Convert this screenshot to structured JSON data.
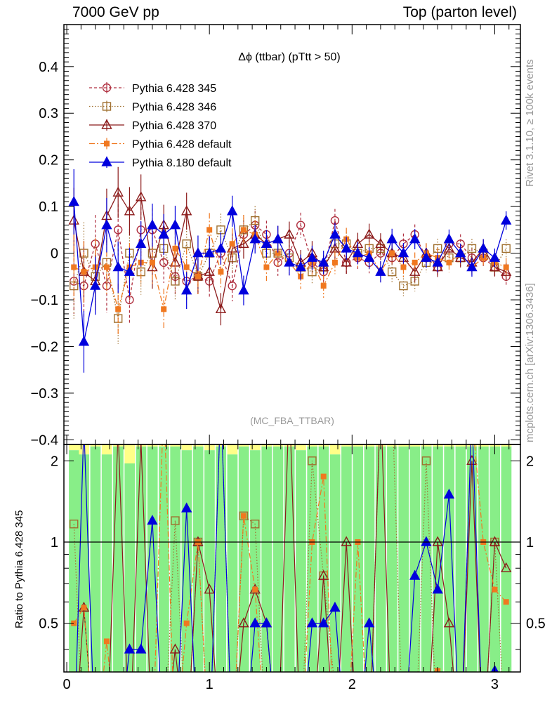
{
  "header": {
    "left": "7000 GeV pp",
    "right": "Top (parton level)"
  },
  "side_text": {
    "rivet": "Rivet 3.1.10, ≥ 100k events",
    "mcplots": "mcplots.cern.ch [arXiv:1306.3436]"
  },
  "chart_data": {
    "type": "scatter",
    "title": "Δϕ (ttbar) (pTtt > 50)",
    "analysis": "(MC_FBA_TTBAR)",
    "xlim": [
      -0.02,
      3.18
    ],
    "ylim": [
      -0.41,
      0.49
    ],
    "ratio_ylabel": "Ratio to Pythia 6.428 345",
    "ratio_ylim": [
      0.33,
      2.3
    ],
    "ratio_reference": 1,
    "x_ticks": [
      "0",
      "1",
      "2",
      "3"
    ],
    "y_ticks": [
      "−0.4",
      "−0.3",
      "−0.2",
      "−0.1",
      "0",
      "0.1",
      "0.2",
      "0.3",
      "0.4"
    ],
    "ratio_ticks": [
      "0.5",
      "1",
      "2"
    ],
    "x": [
      0.05,
      0.12,
      0.2,
      0.28,
      0.36,
      0.44,
      0.52,
      0.6,
      0.68,
      0.76,
      0.84,
      0.92,
      1.0,
      1.08,
      1.16,
      1.24,
      1.32,
      1.4,
      1.48,
      1.56,
      1.64,
      1.72,
      1.8,
      1.88,
      1.96,
      2.04,
      2.12,
      2.2,
      2.28,
      2.36,
      2.44,
      2.52,
      2.6,
      2.68,
      2.76,
      2.84,
      2.92,
      3.0,
      3.08
    ],
    "series": [
      {
        "name": "Pythia 6.428 345",
        "color": "#b03040",
        "marker": "circle-open",
        "line": "dashed",
        "values": [
          -0.06,
          -0.07,
          0.02,
          -0.07,
          0.05,
          -0.1,
          0.05,
          0.05,
          -0.02,
          -0.05,
          -0.06,
          -0.05,
          -0.06,
          0.0,
          -0.07,
          0.04,
          0.06,
          0.04,
          -0.02,
          0.0,
          0.06,
          -0.02,
          -0.04,
          0.07,
          -0.02,
          -0.01,
          -0.02,
          0.0,
          -0.01,
          0.02,
          0.04,
          -0.01,
          -0.03,
          0.02,
          0.02,
          -0.01,
          -0.01,
          -0.03,
          -0.05
        ]
      },
      {
        "name": "Pythia 6.428 346",
        "color": "#a07030",
        "marker": "square-open",
        "line": "dotted",
        "values": [
          -0.07,
          0.0,
          -0.05,
          -0.02,
          -0.14,
          0.0,
          -0.04,
          0.0,
          0.01,
          -0.06,
          0.02,
          -0.05,
          0.0,
          0.05,
          -0.01,
          0.05,
          0.07,
          0.0,
          0.0,
          -0.01,
          -0.03,
          -0.04,
          -0.03,
          0.02,
          0.02,
          0.0,
          0.01,
          0.01,
          -0.04,
          -0.07,
          -0.06,
          -0.02,
          0.01,
          -0.01,
          -0.01,
          0.01,
          0.0,
          -0.03,
          0.01
        ]
      },
      {
        "name": "Pythia 6.428 370",
        "color": "#8b1a1a",
        "marker": "triangle-open",
        "line": "solid",
        "values": [
          0.07,
          -0.04,
          -0.06,
          0.08,
          0.13,
          0.09,
          0.12,
          -0.03,
          0.06,
          -0.02,
          0.09,
          -0.05,
          -0.04,
          -0.12,
          0.01,
          0.02,
          0.04,
          0.02,
          0.03,
          0.04,
          -0.02,
          0.0,
          -0.03,
          0.01,
          -0.02,
          0.02,
          0.04,
          0.02,
          0.0,
          -0.01,
          -0.04,
          0.0,
          -0.03,
          0.01,
          -0.01,
          -0.02,
          0.01,
          -0.03,
          -0.04
        ]
      },
      {
        "name": "Pythia 6.428 default",
        "color": "#f07820",
        "marker": "square-filled",
        "line": "dashdot",
        "values": [
          -0.03,
          -0.04,
          -0.03,
          -0.03,
          -0.12,
          -0.03,
          -0.02,
          -0.02,
          -0.12,
          0.01,
          -0.03,
          -0.05,
          0.05,
          -0.04,
          0.02,
          0.05,
          0.04,
          -0.03,
          0.0,
          -0.02,
          -0.05,
          -0.02,
          -0.07,
          -0.02,
          0.03,
          -0.01,
          0.0,
          -0.04,
          0.0,
          -0.03,
          -0.02,
          0.0,
          -0.01,
          -0.02,
          0.0,
          -0.03,
          -0.01,
          -0.02,
          -0.03
        ]
      },
      {
        "name": "Pythia 8.180 default",
        "color": "#0000dd",
        "marker": "triangle-filled",
        "line": "solid",
        "values": [
          0.11,
          -0.19,
          -0.07,
          0.06,
          -0.03,
          -0.04,
          0.02,
          0.06,
          0.04,
          0.06,
          -0.08,
          0.0,
          0.0,
          0.01,
          0.09,
          -0.08,
          0.03,
          0.02,
          0.03,
          -0.02,
          -0.03,
          -0.01,
          -0.02,
          0.04,
          0.01,
          0.0,
          -0.01,
          -0.04,
          0.03,
          0.0,
          0.03,
          -0.01,
          -0.02,
          0.03,
          0.0,
          -0.03,
          0.01,
          -0.01,
          0.07
        ]
      }
    ]
  }
}
